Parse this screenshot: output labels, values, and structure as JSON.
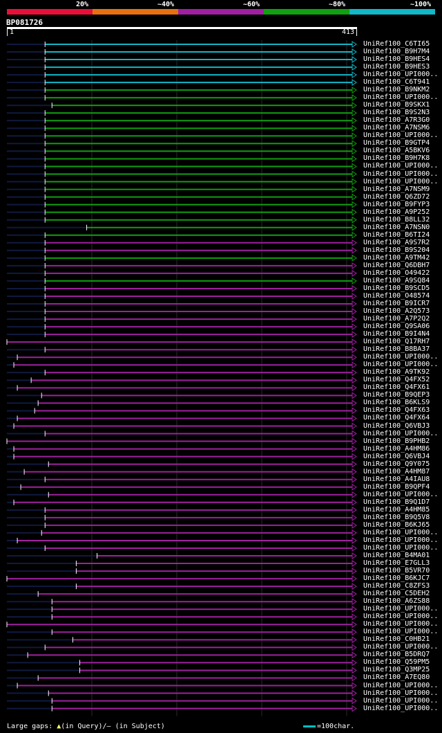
{
  "legend": [
    {
      "label": "20%",
      "color": "#e8103a"
    },
    {
      "label": "~40%",
      "color": "#e87010"
    },
    {
      "label": "~60%",
      "color": "#a020a0"
    },
    {
      "label": "~80%",
      "color": "#10a010"
    },
    {
      "label": "~100%",
      "color": "#10b8c8"
    }
  ],
  "query": {
    "name": "BP081726",
    "start": "1",
    "end": "413"
  },
  "colors": {
    "cyan": "#10b8c8",
    "green": "#10a010",
    "purple": "#a020a0",
    "dark": "#101a40",
    "grid": "#2a2a2a",
    "gap": "#ffff66"
  },
  "hits": [
    {
      "label": "UniRef100_C6TI65",
      "color": "cyan",
      "start": 0.11
    },
    {
      "label": "UniRef100_B9H7M4",
      "color": "cyan",
      "start": 0.11
    },
    {
      "label": "UniRef100_B9HES4",
      "color": "cyan",
      "start": 0.11
    },
    {
      "label": "UniRef100_B9HES3",
      "color": "cyan",
      "start": 0.11
    },
    {
      "label": "UniRef100_UPI000..",
      "color": "cyan",
      "start": 0.11
    },
    {
      "label": "UniRef100_C6T941",
      "color": "cyan",
      "start": 0.11
    },
    {
      "label": "UniRef100_B9NKM2",
      "color": "green",
      "start": 0.11
    },
    {
      "label": "UniRef100_UPI000..",
      "color": "green",
      "start": 0.11
    },
    {
      "label": "UniRef100_B9SKX1",
      "color": "green",
      "start": 0.13
    },
    {
      "label": "UniRef100_B9S2N3",
      "color": "green",
      "start": 0.11
    },
    {
      "label": "UniRef100_A7R3G0",
      "color": "green",
      "start": 0.11
    },
    {
      "label": "UniRef100_A7NSM6",
      "color": "green",
      "start": 0.11
    },
    {
      "label": "UniRef100_UPI000..",
      "color": "green",
      "start": 0.11
    },
    {
      "label": "UniRef100_B9GTP4",
      "color": "green",
      "start": 0.11
    },
    {
      "label": "UniRef100_A5BKV6",
      "color": "green",
      "start": 0.11
    },
    {
      "label": "UniRef100_B9H7K8",
      "color": "green",
      "start": 0.11
    },
    {
      "label": "UniRef100_UPI000..",
      "color": "green",
      "start": 0.11
    },
    {
      "label": "UniRef100_UPI000..",
      "color": "green",
      "start": 0.11
    },
    {
      "label": "UniRef100_UPI000..",
      "color": "green",
      "start": 0.11
    },
    {
      "label": "UniRef100_A7NSM9",
      "color": "green",
      "start": 0.11
    },
    {
      "label": "UniRef100_Q6ZD72",
      "color": "green",
      "start": 0.11
    },
    {
      "label": "UniRef100_B9FYP3",
      "color": "green",
      "start": 0.11
    },
    {
      "label": "UniRef100_A9P252",
      "color": "green",
      "start": 0.11
    },
    {
      "label": "UniRef100_B8LL32",
      "color": "green",
      "start": 0.11
    },
    {
      "label": "UniRef100_A7NSN0",
      "color": "green",
      "start": 0.23
    },
    {
      "label": "UniRef100_B6TI24",
      "color": "green",
      "start": 0.11
    },
    {
      "label": "UniRef100_A9S7R2",
      "color": "purple",
      "start": 0.11
    },
    {
      "label": "UniRef100_B9S204",
      "color": "purple",
      "start": 0.11
    },
    {
      "label": "UniRef100_A9TM42",
      "color": "green",
      "start": 0.11
    },
    {
      "label": "UniRef100_Q6DBH7",
      "color": "purple",
      "start": 0.11
    },
    {
      "label": "UniRef100_O49422",
      "color": "purple",
      "start": 0.11
    },
    {
      "label": "UniRef100_A9SQ84",
      "color": "green",
      "start": 0.11
    },
    {
      "label": "UniRef100_B9SCD5",
      "color": "purple",
      "start": 0.11
    },
    {
      "label": "UniRef100_O48574",
      "color": "purple",
      "start": 0.11
    },
    {
      "label": "UniRef100_B9ICR7",
      "color": "purple",
      "start": 0.11
    },
    {
      "label": "UniRef100_A2Q573",
      "color": "purple",
      "start": 0.11
    },
    {
      "label": "UniRef100_A7P2Q2",
      "color": "purple",
      "start": 0.11
    },
    {
      "label": "UniRef100_Q9SA06",
      "color": "purple",
      "start": 0.11
    },
    {
      "label": "UniRef100_B9I4N4",
      "color": "purple",
      "start": 0.11
    },
    {
      "label": "UniRef100_Q17RH7",
      "color": "purple",
      "start": 0.0
    },
    {
      "label": "UniRef100_B8BA37",
      "color": "purple",
      "start": 0.11
    },
    {
      "label": "UniRef100_UPI000..",
      "color": "purple",
      "start": 0.03
    },
    {
      "label": "UniRef100_UPI000..",
      "color": "purple",
      "start": 0.02
    },
    {
      "label": "UniRef100_A9TK92",
      "color": "purple",
      "start": 0.11
    },
    {
      "label": "UniRef100_Q4FX52",
      "color": "purple",
      "start": 0.07
    },
    {
      "label": "UniRef100_Q4FX61",
      "color": "purple",
      "start": 0.03
    },
    {
      "label": "UniRef100_B9QEP3",
      "color": "purple",
      "start": 0.1
    },
    {
      "label": "UniRef100_B6KLS9",
      "color": "purple",
      "start": 0.09
    },
    {
      "label": "UniRef100_Q4FX63",
      "color": "purple",
      "start": 0.08
    },
    {
      "label": "UniRef100_Q4FX64",
      "color": "purple",
      "start": 0.03
    },
    {
      "label": "UniRef100_Q6VBJ3",
      "color": "purple",
      "start": 0.02
    },
    {
      "label": "UniRef100_UPI000..",
      "color": "purple",
      "start": 0.11
    },
    {
      "label": "UniRef100_B9PHB2",
      "color": "purple",
      "start": 0.0
    },
    {
      "label": "UniRef100_A4HM86",
      "color": "purple",
      "start": 0.02
    },
    {
      "label": "UniRef100_Q6VBJ4",
      "color": "purple",
      "start": 0.02
    },
    {
      "label": "UniRef100_Q9Y075",
      "color": "purple",
      "start": 0.12
    },
    {
      "label": "UniRef100_A4HM87",
      "color": "purple",
      "start": 0.05
    },
    {
      "label": "UniRef100_A4IAU8",
      "color": "purple",
      "start": 0.11
    },
    {
      "label": "UniRef100_B9QPF4",
      "color": "purple",
      "start": 0.04
    },
    {
      "label": "UniRef100_UPI000..",
      "color": "purple",
      "start": 0.12
    },
    {
      "label": "UniRef100_B9Q1D7",
      "color": "purple",
      "start": 0.02
    },
    {
      "label": "UniRef100_A4HM85",
      "color": "purple",
      "start": 0.11
    },
    {
      "label": "UniRef100_B9Q5V8",
      "color": "purple",
      "start": 0.11
    },
    {
      "label": "UniRef100_B6KJ65",
      "color": "purple",
      "start": 0.11
    },
    {
      "label": "UniRef100_UPI000..",
      "color": "purple",
      "start": 0.1
    },
    {
      "label": "UniRef100_UPI000..",
      "color": "purple",
      "start": 0.03
    },
    {
      "label": "UniRef100_UPI000..",
      "color": "purple",
      "start": 0.11
    },
    {
      "label": "UniRef100_B4MA01",
      "color": "purple",
      "start": 0.26
    },
    {
      "label": "UniRef100_E7GLL3",
      "color": "purple",
      "start": 0.2
    },
    {
      "label": "UniRef100_B5VR70",
      "color": "purple",
      "start": 0.2
    },
    {
      "label": "UniRef100_B6KJC7",
      "color": "purple",
      "start": 0.0
    },
    {
      "label": "UniRef100_C8ZFS3",
      "color": "purple",
      "start": 0.2
    },
    {
      "label": "UniRef100_C5DEH2",
      "color": "purple",
      "start": 0.09
    },
    {
      "label": "UniRef100_A6ZS88",
      "color": "purple",
      "start": 0.13
    },
    {
      "label": "UniRef100_UPI000..",
      "color": "purple",
      "start": 0.13
    },
    {
      "label": "UniRef100_UPI000..",
      "color": "purple",
      "start": 0.13
    },
    {
      "label": "UniRef100_UPI000..",
      "color": "purple",
      "start": 0.0
    },
    {
      "label": "UniRef100_UPI000..",
      "color": "purple",
      "start": 0.13
    },
    {
      "label": "UniRef100_C0HB21",
      "color": "purple",
      "start": 0.19
    },
    {
      "label": "UniRef100_UPI000..",
      "color": "purple",
      "start": 0.11
    },
    {
      "label": "UniRef100_B5DRQ7",
      "color": "purple",
      "start": 0.06
    },
    {
      "label": "UniRef100_Q59PM5",
      "color": "purple",
      "start": 0.21
    },
    {
      "label": "UniRef100_Q3MP25",
      "color": "purple",
      "start": 0.21
    },
    {
      "label": "UniRef100_A7EQ80",
      "color": "purple",
      "start": 0.09
    },
    {
      "label": "UniRef100_UPI000..",
      "color": "purple",
      "start": 0.03
    },
    {
      "label": "UniRef100_UPI000..",
      "color": "purple",
      "start": 0.12
    },
    {
      "label": "UniRef100_UPI000..",
      "color": "purple",
      "start": 0.13
    },
    {
      "label": "UniRef100_UPI000..",
      "color": "purple",
      "start": 0.13
    }
  ],
  "footer": {
    "prefix": "Large gaps:",
    "tri": "▲",
    "query_part": "(in Query)/",
    "dash": "–",
    "subject_part": " (in Subject)"
  },
  "scale": {
    "label": "=100char."
  }
}
